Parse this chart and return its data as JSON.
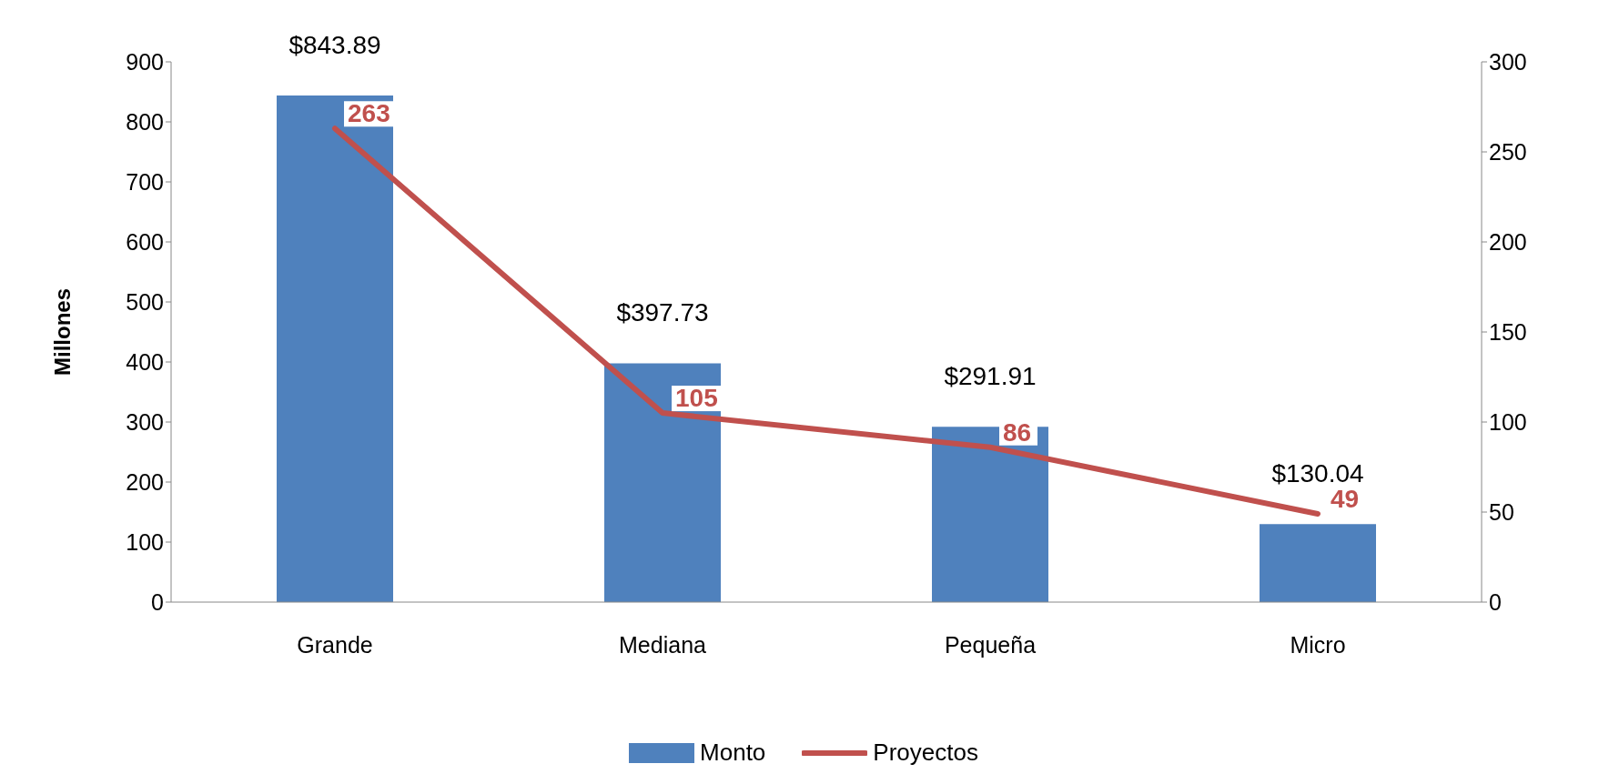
{
  "chart_data": {
    "type": "bar",
    "categories": [
      "Grande",
      "Mediana",
      "Pequeña",
      "Micro"
    ],
    "ylabel": "Millones",
    "ylim": [
      0,
      900
    ],
    "yticks": [
      0,
      100,
      200,
      300,
      400,
      500,
      600,
      700,
      800,
      900
    ],
    "y2lim": [
      0,
      300
    ],
    "y2ticks": [
      0,
      50,
      100,
      150,
      200,
      250,
      300
    ],
    "grid": false,
    "legend": "bottom",
    "marker": "none",
    "series": [
      {
        "name": "Monto",
        "color": "#4f81bd",
        "values": [
          843.89,
          397.73,
          291.91,
          130.04
        ],
        "value_labels": [
          "$843.89",
          "$397.73",
          "$291.91",
          "$130.04"
        ]
      },
      {
        "name": "Proyectos",
        "type": "line",
        "axis": "y2",
        "color": "#c0504d",
        "values": [
          263,
          105,
          86,
          49
        ],
        "value_labels": [
          "263",
          "105",
          "86",
          "49"
        ]
      }
    ]
  }
}
